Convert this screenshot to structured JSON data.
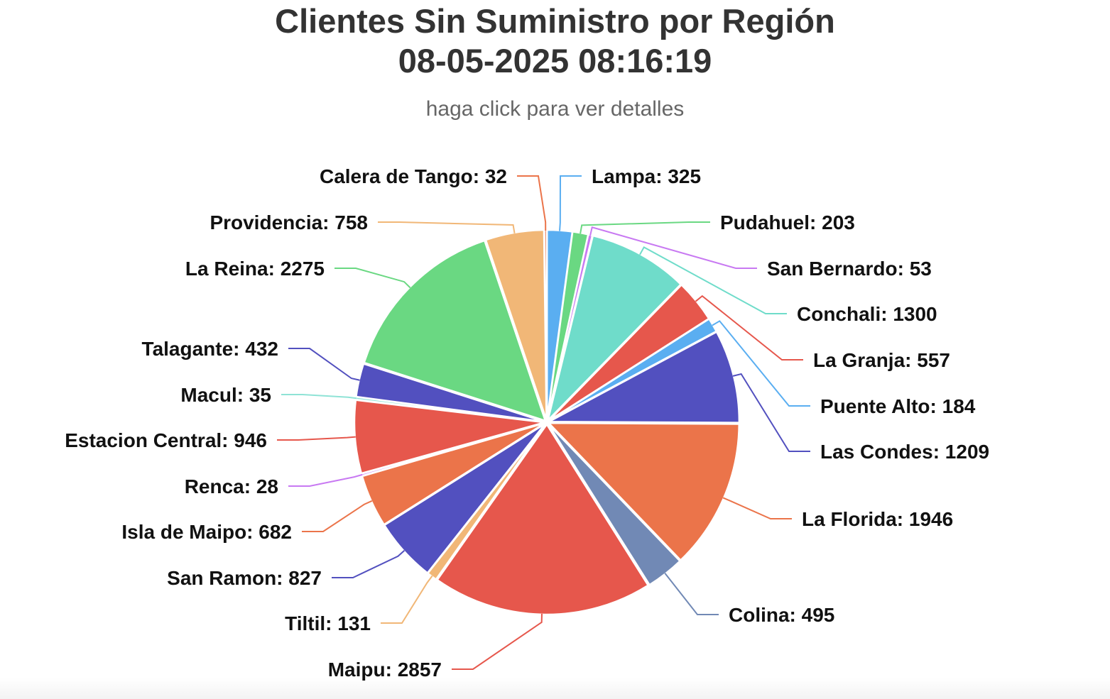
{
  "chart_data": {
    "type": "pie",
    "title": "Clientes Sin Suministro por Región",
    "title_date": "08-05-2025 08:16:19",
    "subtitle": "haga click para ver detalles",
    "legend": "none",
    "data_labels": "outside with connectors",
    "slices": [
      {
        "name": "Lampa",
        "value": 325,
        "color": "#5AAEF1"
      },
      {
        "name": "Pudahuel",
        "value": 203,
        "color": "#6AD882"
      },
      {
        "name": "San Bernardo",
        "value": 53,
        "color": "#C879F2"
      },
      {
        "name": "Conchali",
        "value": 1300,
        "color": "#6FDCCA"
      },
      {
        "name": "La Granja",
        "value": 557,
        "color": "#E6574C"
      },
      {
        "name": "Puente Alto",
        "value": 184,
        "color": "#5AAEF1"
      },
      {
        "name": "Las Condes",
        "value": 1209,
        "color": "#5250BF"
      },
      {
        "name": "La Florida",
        "value": 1946,
        "color": "#EB744A"
      },
      {
        "name": "Colina",
        "value": 495,
        "color": "#7189B5"
      },
      {
        "name": "Maipu",
        "value": 2857,
        "color": "#E6574C"
      },
      {
        "name": "Tiltil",
        "value": 131,
        "color": "#F1B777"
      },
      {
        "name": "San Ramon",
        "value": 827,
        "color": "#5250BF"
      },
      {
        "name": "Isla de Maipo",
        "value": 682,
        "color": "#EB744A"
      },
      {
        "name": "Renca",
        "value": 28,
        "color": "#C879F2"
      },
      {
        "name": "Estacion Central",
        "value": 946,
        "color": "#E6574C"
      },
      {
        "name": "Macul",
        "value": 35,
        "color": "#8FE3D6"
      },
      {
        "name": "Talagante",
        "value": 432,
        "color": "#5250BF"
      },
      {
        "name": "La Reina",
        "value": 2275,
        "color": "#6AD882"
      },
      {
        "name": "Providencia",
        "value": 758,
        "color": "#F1B777"
      },
      {
        "name": "Calera de Tango",
        "value": 32,
        "color": "#EB744A"
      }
    ]
  }
}
